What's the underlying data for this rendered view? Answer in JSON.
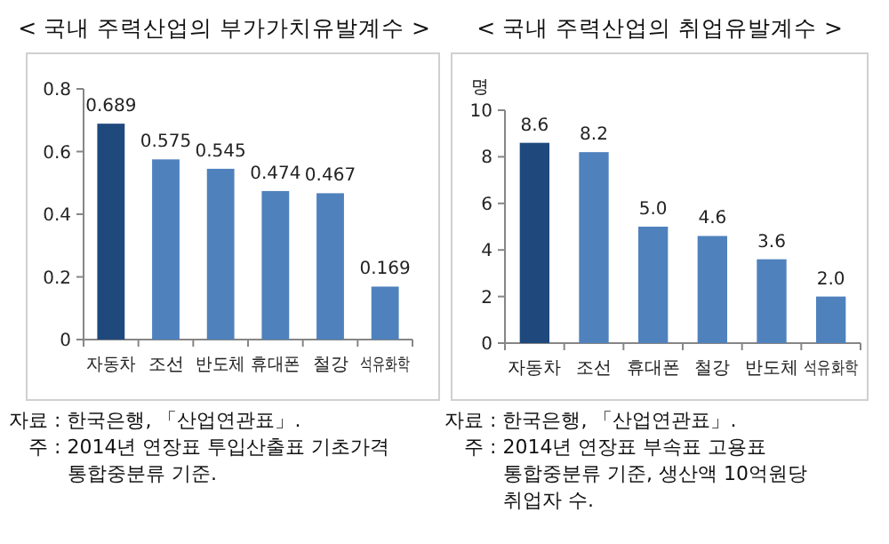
{
  "chart_data": [
    {
      "type": "bar",
      "title": "< 국내 주력산업의 부가가치유발계수 >",
      "categories": [
        "자동차",
        "조선",
        "반도체",
        "휴대폰",
        "철강",
        "석유화학"
      ],
      "values": [
        0.689,
        0.575,
        0.545,
        0.474,
        0.467,
        0.169
      ],
      "colors": [
        "#1f497d",
        "#4f81bd",
        "#4f81bd",
        "#4f81bd",
        "#4f81bd",
        "#4f81bd"
      ],
      "data_labels": true,
      "ylim": [
        0,
        0.8
      ],
      "yticks": [
        0,
        0.2,
        0.4,
        0.6,
        0.8
      ],
      "grid": false,
      "annotations": [
        "자료 : 한국은행, 「산업연관표」.",
        "주 : 2014년 연장표 투입산출표 기초가격",
        "통합중분류 기준."
      ]
    },
    {
      "type": "bar",
      "title": "< 국내 주력산업의 취업유발계수 >",
      "ylabel": "명",
      "categories": [
        "자동차",
        "조선",
        "휴대폰",
        "철강",
        "반도체",
        "석유화학"
      ],
      "values": [
        8.6,
        8.2,
        5.0,
        4.6,
        3.6,
        2.0
      ],
      "value_labels": [
        "8.6",
        "8.2",
        "5.0",
        "4.6",
        "3.6",
        "2.0"
      ],
      "colors": [
        "#1f497d",
        "#4f81bd",
        "#4f81bd",
        "#4f81bd",
        "#4f81bd",
        "#4f81bd"
      ],
      "ylim": [
        0,
        10
      ],
      "yticks": [
        0,
        2,
        4,
        6,
        8,
        10
      ],
      "grid": false,
      "annotations": [
        "자료 : 한국은행, 「산업연관표」.",
        "주 : 2014년 연장표 부속표 고용표",
        "통합중분류 기준, 생산액 10억원당",
        "취업자 수."
      ]
    }
  ]
}
